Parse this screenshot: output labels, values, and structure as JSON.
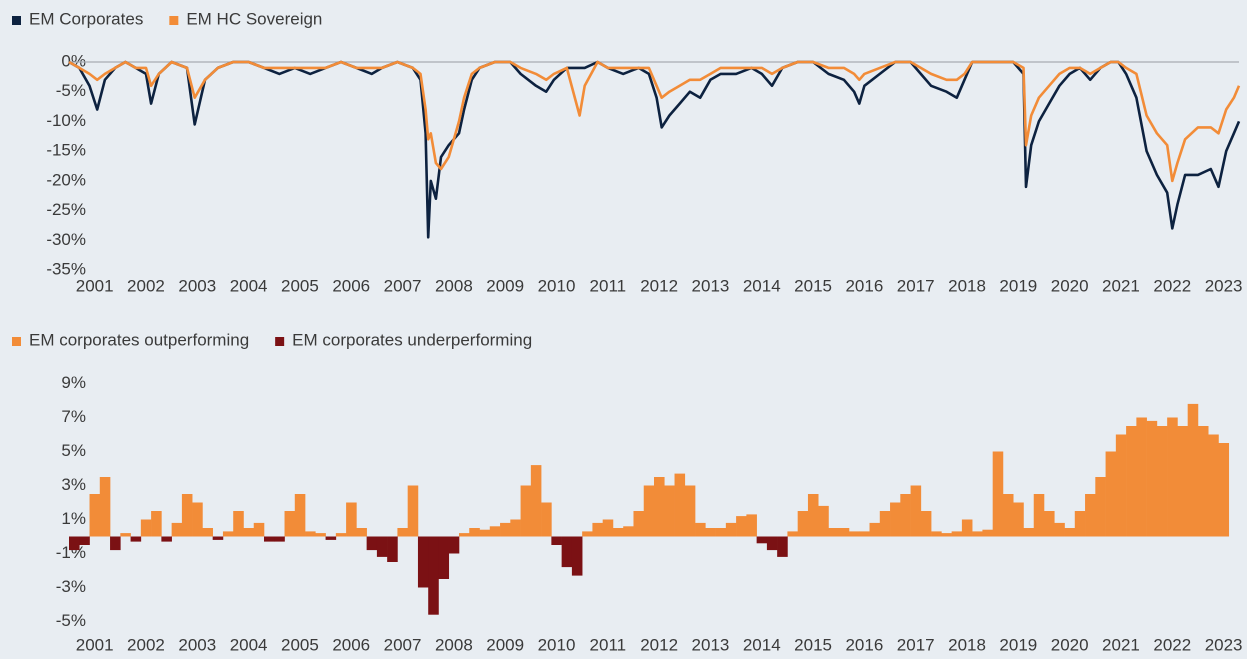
{
  "chart_data": [
    {
      "type": "line",
      "series": [
        {
          "name": "EM Corporates",
          "color": "#0d2240",
          "values": [
            0,
            -1,
            -4,
            -8,
            -3,
            -1,
            0,
            -1,
            -2,
            -7,
            -2,
            0,
            -1,
            -10.5,
            -3,
            -1,
            0,
            0,
            -1,
            -2,
            -1,
            -2,
            -1,
            0,
            -1,
            -2,
            -1,
            0,
            -1,
            -3,
            -12,
            -29.5,
            -20,
            -23,
            -16,
            -14,
            -12,
            -8,
            -3,
            -1,
            0,
            0,
            -2,
            -4,
            -5,
            -3,
            -1,
            -1,
            -1,
            0,
            -1,
            -2,
            -1,
            -2,
            -6,
            -11,
            -9,
            -7,
            -5,
            -6,
            -3,
            -2,
            -2,
            -1,
            -2,
            -4,
            -1,
            0,
            0,
            -2,
            -3,
            -5,
            -7,
            -4,
            -2,
            0,
            0,
            -2,
            -4,
            -5,
            -6,
            -3,
            0,
            0,
            0,
            -2,
            -21,
            -14,
            -10,
            -7,
            -4,
            -2,
            -1,
            -3,
            -1,
            0,
            0,
            -2,
            -6,
            -15,
            -19,
            -22,
            -28,
            -24,
            -19,
            -19,
            -18,
            -21,
            -15,
            -12,
            -10
          ]
        },
        {
          "name": "EM HC Sovereign",
          "color": "#f28c38",
          "values": [
            0,
            -1,
            -2,
            -3,
            -2,
            -1,
            0,
            -1,
            -1,
            -4,
            -2,
            0,
            -1,
            -6,
            -3,
            -1,
            0,
            0,
            -1,
            -1,
            -1,
            -1,
            -1,
            0,
            -1,
            -1,
            -1,
            0,
            -1,
            -2,
            -8,
            -13,
            -12,
            -17,
            -18,
            -16,
            -10,
            -6,
            -2,
            -1,
            0,
            0,
            -1,
            -2,
            -3,
            -2,
            -1,
            -9,
            -4,
            0,
            -1,
            -1,
            -1,
            -1,
            -4,
            -6,
            -5,
            -4,
            -3,
            -3,
            -2,
            -1,
            -1,
            -1,
            -1,
            -2,
            -1,
            0,
            0,
            -1,
            -1,
            -2,
            -3,
            -2,
            -1,
            0,
            0,
            -1,
            -2,
            -3,
            -3,
            -2,
            0,
            0,
            0,
            -1,
            -14,
            -9,
            -6,
            -4,
            -2,
            -1,
            -1,
            -2,
            -1,
            0,
            0,
            -1,
            -2,
            -9,
            -12,
            -14,
            -20,
            -17,
            -13,
            -11,
            -11,
            -12,
            -8,
            -6,
            -4
          ]
        }
      ],
      "x": [
        2000.5,
        2000.7,
        2000.9,
        2001.05,
        2001.2,
        2001.4,
        2001.6,
        2001.8,
        2002.0,
        2002.1,
        2002.25,
        2002.5,
        2002.8,
        2002.95,
        2003.15,
        2003.4,
        2003.7,
        2004.0,
        2004.3,
        2004.6,
        2004.9,
        2005.2,
        2005.5,
        2005.8,
        2006.1,
        2006.4,
        2006.6,
        2006.9,
        2007.2,
        2007.35,
        2007.45,
        2007.5,
        2007.55,
        2007.65,
        2007.75,
        2007.9,
        2008.1,
        2008.2,
        2008.35,
        2008.5,
        2008.8,
        2009.1,
        2009.3,
        2009.6,
        2009.8,
        2009.95,
        2010.2,
        2010.45,
        2010.55,
        2010.8,
        2011.0,
        2011.3,
        2011.6,
        2011.8,
        2011.95,
        2012.05,
        2012.2,
        2012.4,
        2012.6,
        2012.8,
        2013.0,
        2013.2,
        2013.5,
        2013.8,
        2014.0,
        2014.2,
        2014.4,
        2014.7,
        2015.0,
        2015.3,
        2015.6,
        2015.8,
        2015.9,
        2016.0,
        2016.3,
        2016.6,
        2016.9,
        2017.1,
        2017.3,
        2017.6,
        2017.8,
        2017.95,
        2018.1,
        2018.5,
        2018.9,
        2019.1,
        2019.15,
        2019.25,
        2019.4,
        2019.6,
        2019.8,
        2020.0,
        2020.2,
        2020.4,
        2020.6,
        2020.8,
        2020.95,
        2021.1,
        2021.3,
        2021.5,
        2021.7,
        2021.9,
        2022.0,
        2022.1,
        2022.25,
        2022.5,
        2022.75,
        2022.9,
        2023.05,
        2023.2,
        2023.3
      ],
      "xlim": [
        2000.5,
        2023.3
      ],
      "xticks": [
        2001,
        2002,
        2003,
        2004,
        2005,
        2006,
        2007,
        2008,
        2009,
        2010,
        2011,
        2012,
        2013,
        2014,
        2015,
        2016,
        2017,
        2018,
        2019,
        2020,
        2021,
        2022,
        2023
      ],
      "ylim": [
        -35,
        0
      ],
      "yticks": [
        {
          "value": 0,
          "label": "0%"
        },
        {
          "value": -5,
          "label": "-5%"
        },
        {
          "value": -10,
          "label": "-10%"
        },
        {
          "value": -15,
          "label": "-15%"
        },
        {
          "value": -20,
          "label": "-20%"
        },
        {
          "value": -25,
          "label": "-25%"
        },
        {
          "value": -30,
          "label": "-30%"
        },
        {
          "value": -35,
          "label": "-35%"
        }
      ],
      "zero_line": true,
      "legend": "top-left"
    },
    {
      "type": "bar",
      "series": [
        {
          "name": "EM corporates outperforming",
          "color": "#f28c38",
          "values": [
            null,
            null,
            2.5,
            3.5,
            null,
            0.2,
            null,
            1.0,
            1.5,
            null,
            0.8,
            2.5,
            2.0,
            0.5,
            null,
            0.3,
            1.5,
            0.5,
            0.8,
            null,
            null,
            1.5,
            2.5,
            0.3,
            0.2,
            null,
            0.2,
            2.0,
            0.5,
            null,
            null,
            null,
            0.5,
            3.0,
            null,
            null,
            null,
            null,
            0.2,
            0.5,
            0.4,
            0.6,
            0.8,
            1.0,
            3.0,
            4.2,
            2.0,
            null,
            null,
            null,
            0.3,
            0.8,
            1.0,
            0.5,
            0.6,
            1.5,
            3.0,
            3.5,
            3.0,
            3.7,
            3.0,
            0.8,
            0.5,
            0.5,
            0.8,
            1.2,
            1.3,
            null,
            null,
            null,
            0.3,
            1.5,
            2.5,
            1.8,
            0.5,
            0.5,
            0.3,
            0.3,
            0.8,
            1.5,
            2.0,
            2.5,
            3.0,
            1.5,
            0.3,
            0.2,
            0.3,
            1.0,
            0.3,
            0.4,
            5.0,
            2.5,
            2.0,
            0.5,
            2.5,
            1.5,
            0.8,
            0.5,
            1.5,
            2.5,
            3.5,
            5.0,
            6.0,
            6.5,
            7.0,
            6.8,
            6.5,
            7.0,
            6.5,
            7.8,
            6.5,
            6.0,
            5.5
          ]
        },
        {
          "name": "EM corporates underperforming",
          "color": "#7b1114",
          "values": [
            -0.8,
            -0.5,
            null,
            null,
            -0.8,
            null,
            -0.3,
            null,
            null,
            -0.3,
            null,
            null,
            null,
            null,
            -0.2,
            null,
            null,
            null,
            null,
            -0.3,
            -0.3,
            null,
            null,
            null,
            null,
            -0.2,
            null,
            null,
            null,
            -0.8,
            -1.2,
            -1.5,
            null,
            null,
            -3.0,
            -4.6,
            -2.5,
            -1.0,
            null,
            null,
            null,
            null,
            null,
            null,
            null,
            null,
            null,
            -0.5,
            -1.8,
            -2.3,
            null,
            null,
            null,
            null,
            null,
            null,
            null,
            null,
            null,
            null,
            null,
            null,
            null,
            null,
            null,
            null,
            null,
            -0.4,
            -0.8,
            -1.2,
            null,
            null,
            null,
            null,
            null,
            null,
            null,
            null,
            null,
            null,
            null,
            null,
            null,
            null,
            null,
            null,
            null,
            null,
            null,
            null,
            null,
            null,
            null,
            null,
            null,
            null,
            null,
            null,
            null,
            null,
            null,
            null,
            null,
            null,
            null,
            null,
            null,
            null,
            null,
            null,
            null,
            null,
            null
          ]
        }
      ],
      "x": [
        2000.6,
        2000.8,
        2001.0,
        2001.2,
        2001.4,
        2001.6,
        2001.8,
        2002.0,
        2002.2,
        2002.4,
        2002.6,
        2002.8,
        2003.0,
        2003.2,
        2003.4,
        2003.6,
        2003.8,
        2004.0,
        2004.2,
        2004.4,
        2004.6,
        2004.8,
        2005.0,
        2005.2,
        2005.4,
        2005.6,
        2005.8,
        2006.0,
        2006.2,
        2006.4,
        2006.6,
        2006.8,
        2007.0,
        2007.2,
        2007.4,
        2007.6,
        2007.8,
        2008.0,
        2008.2,
        2008.4,
        2008.6,
        2008.8,
        2009.0,
        2009.2,
        2009.4,
        2009.6,
        2009.8,
        2010.0,
        2010.2,
        2010.4,
        2010.6,
        2010.8,
        2011.0,
        2011.2,
        2011.4,
        2011.6,
        2011.8,
        2012.0,
        2012.2,
        2012.4,
        2012.6,
        2012.8,
        2013.0,
        2013.2,
        2013.4,
        2013.6,
        2013.8,
        2014.0,
        2014.2,
        2014.4,
        2014.6,
        2014.8,
        2015.0,
        2015.2,
        2015.4,
        2015.6,
        2015.8,
        2016.0,
        2016.2,
        2016.4,
        2016.6,
        2016.8,
        2017.0,
        2017.2,
        2017.4,
        2017.6,
        2017.8,
        2018.0,
        2018.2,
        2018.4,
        2018.6,
        2018.8,
        2019.0,
        2019.2,
        2019.4,
        2019.6,
        2019.8,
        2020.0,
        2020.2,
        2020.4,
        2020.6,
        2020.8,
        2021.0,
        2021.2,
        2021.4,
        2021.6,
        2021.8,
        2022.0,
        2022.2,
        2022.4,
        2022.6,
        2022.8,
        2023.0
      ],
      "xlim": [
        2000.5,
        2023.3
      ],
      "xticks": [
        2001,
        2002,
        2003,
        2004,
        2005,
        2006,
        2007,
        2008,
        2009,
        2010,
        2011,
        2012,
        2013,
        2014,
        2015,
        2016,
        2017,
        2018,
        2019,
        2020,
        2021,
        2022,
        2023
      ],
      "ylim": [
        -5.5,
        9.5
      ],
      "yticks": [
        {
          "value": 9,
          "label": "9%"
        },
        {
          "value": 7,
          "label": "7%"
        },
        {
          "value": 5,
          "label": "5%"
        },
        {
          "value": 3,
          "label": "3%"
        },
        {
          "value": 1,
          "label": "1%"
        },
        {
          "value": -1,
          "label": "-1%"
        },
        {
          "value": -3,
          "label": "-3%"
        },
        {
          "value": -5,
          "label": "-5%"
        }
      ],
      "legend": "top-left"
    }
  ]
}
